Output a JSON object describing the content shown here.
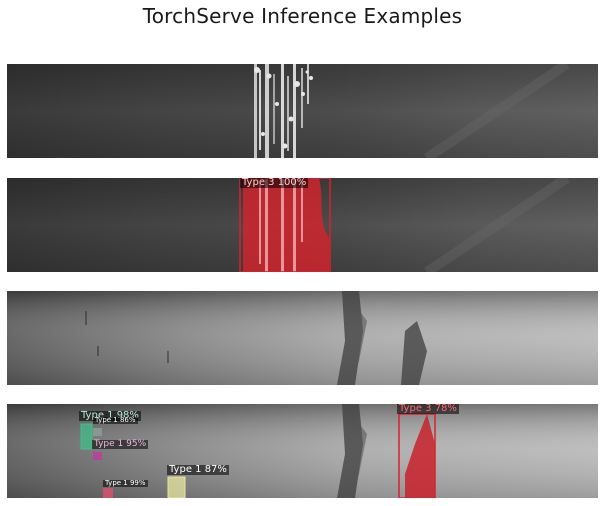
{
  "figure": {
    "title": "TorchServe Inference Examples"
  },
  "panels": [
    {
      "kind": "input",
      "image": "steel-surface-dark"
    },
    {
      "kind": "prediction",
      "image": "steel-surface-dark",
      "detections": [
        {
          "label": "Type 3 100%",
          "color": "#e0282f"
        }
      ]
    },
    {
      "kind": "input",
      "image": "steel-surface-light"
    },
    {
      "kind": "prediction",
      "image": "steel-surface-light",
      "detections": [
        {
          "label": "Type 1 98%",
          "color": "#3fc28a"
        },
        {
          "label": "Type 1 86%",
          "color": "#8fa7a0"
        },
        {
          "label": "Type 1 95%",
          "color": "#c23aa0"
        },
        {
          "label": "Type 1 99%",
          "color": "#e0506a"
        },
        {
          "label": "Type 1 87%",
          "color": "#e8e6a0"
        },
        {
          "label": "Type 3 78%",
          "color": "#e0282f"
        }
      ]
    }
  ]
}
